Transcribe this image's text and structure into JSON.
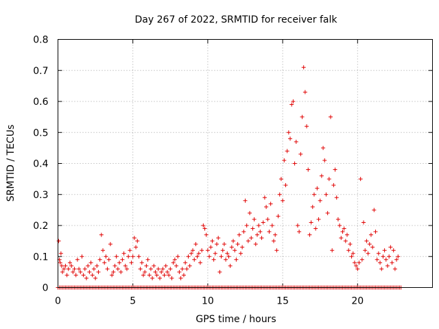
{
  "chart_data": {
    "type": "scatter",
    "title": "Day 267 of 2022, SRMTID for receiver falk",
    "xlabel": "GPS time / hours",
    "ylabel": "SRMTID / TECUs",
    "xlim": [
      0,
      25
    ],
    "ylim": [
      0,
      0.8
    ],
    "xticks": [
      0,
      5,
      10,
      15,
      20
    ],
    "xtick_labels": [
      "0",
      "5",
      "10",
      "15",
      "20"
    ],
    "yticks": [
      0,
      0.1,
      0.2,
      0.3,
      0.4,
      0.5,
      0.6,
      0.7,
      0.8
    ],
    "ytick_labels": [
      "0",
      "0.1",
      "0.2",
      "0.3",
      "0.4",
      "0.5",
      "0.6",
      "0.7",
      "0.8"
    ],
    "grid": true,
    "marker": "plus",
    "color": "#e00000",
    "series": [
      {
        "name": "SRMTID",
        "points": [
          [
            0.05,
            0.15
          ],
          [
            0.1,
            0.09
          ],
          [
            0.15,
            0.08
          ],
          [
            0.2,
            0.11
          ],
          [
            0.25,
            0.07
          ],
          [
            0.3,
            0.05
          ],
          [
            0.4,
            0.06
          ],
          [
            0.5,
            0.07
          ],
          [
            0.6,
            0.04
          ],
          [
            0.7,
            0.06
          ],
          [
            0.8,
            0.08
          ],
          [
            0.9,
            0.07
          ],
          [
            1.0,
            0.05
          ],
          [
            1.1,
            0.06
          ],
          [
            1.2,
            0.04
          ],
          [
            1.3,
            0.09
          ],
          [
            1.4,
            0.06
          ],
          [
            1.5,
            0.05
          ],
          [
            1.6,
            0.1
          ],
          [
            1.7,
            0.04
          ],
          [
            1.8,
            0.06
          ],
          [
            1.9,
            0.03
          ],
          [
            2.0,
            0.07
          ],
          [
            2.1,
            0.05
          ],
          [
            2.2,
            0.08
          ],
          [
            2.3,
            0.04
          ],
          [
            2.4,
            0.06
          ],
          [
            2.5,
            0.03
          ],
          [
            2.6,
            0.07
          ],
          [
            2.7,
            0.05
          ],
          [
            2.8,
            0.09
          ],
          [
            2.9,
            0.17
          ],
          [
            3.0,
            0.12
          ],
          [
            3.1,
            0.08
          ],
          [
            3.2,
            0.1
          ],
          [
            3.3,
            0.06
          ],
          [
            3.4,
            0.09
          ],
          [
            3.5,
            0.14
          ],
          [
            3.6,
            0.04
          ],
          [
            3.7,
            0.05
          ],
          [
            3.8,
            0.07
          ],
          [
            3.9,
            0.1
          ],
          [
            4.0,
            0.06
          ],
          [
            4.1,
            0.08
          ],
          [
            4.2,
            0.05
          ],
          [
            4.3,
            0.09
          ],
          [
            4.4,
            0.11
          ],
          [
            4.5,
            0.07
          ],
          [
            4.6,
            0.06
          ],
          [
            4.7,
            0.1
          ],
          [
            4.8,
            0.12
          ],
          [
            4.9,
            0.08
          ],
          [
            5.0,
            0.1
          ],
          [
            5.1,
            0.16
          ],
          [
            5.2,
            0.13
          ],
          [
            5.3,
            0.15
          ],
          [
            5.4,
            0.1
          ],
          [
            5.5,
            0.06
          ],
          [
            5.6,
            0.08
          ],
          [
            5.7,
            0.04
          ],
          [
            5.8,
            0.05
          ],
          [
            5.9,
            0.07
          ],
          [
            6.0,
            0.09
          ],
          [
            6.1,
            0.04
          ],
          [
            6.2,
            0.06
          ],
          [
            6.3,
            0.03
          ],
          [
            6.4,
            0.07
          ],
          [
            6.5,
            0.05
          ],
          [
            6.6,
            0.04
          ],
          [
            6.7,
            0.06
          ],
          [
            6.8,
            0.03
          ],
          [
            6.9,
            0.05
          ],
          [
            7.0,
            0.06
          ],
          [
            7.1,
            0.04
          ],
          [
            7.2,
            0.07
          ],
          [
            7.3,
            0.05
          ],
          [
            7.4,
            0.04
          ],
          [
            7.5,
            0.06
          ],
          [
            7.6,
            0.03
          ],
          [
            7.7,
            0.08
          ],
          [
            7.8,
            0.09
          ],
          [
            7.9,
            0.07
          ],
          [
            8.0,
            0.1
          ],
          [
            8.1,
            0.05
          ],
          [
            8.2,
            0.03
          ],
          [
            8.3,
            0.06
          ],
          [
            8.4,
            0.04
          ],
          [
            8.5,
            0.08
          ],
          [
            8.6,
            0.06
          ],
          [
            8.7,
            0.1
          ],
          [
            8.8,
            0.07
          ],
          [
            8.9,
            0.11
          ],
          [
            9.0,
            0.12
          ],
          [
            9.1,
            0.09
          ],
          [
            9.2,
            0.14
          ],
          [
            9.3,
            0.1
          ],
          [
            9.4,
            0.11
          ],
          [
            9.5,
            0.08
          ],
          [
            9.6,
            0.12
          ],
          [
            9.7,
            0.2
          ],
          [
            9.8,
            0.19
          ],
          [
            9.9,
            0.17
          ],
          [
            10.0,
            0.12
          ],
          [
            10.1,
            0.1
          ],
          [
            10.2,
            0.13
          ],
          [
            10.3,
            0.15
          ],
          [
            10.4,
            0.09
          ],
          [
            10.5,
            0.11
          ],
          [
            10.6,
            0.14
          ],
          [
            10.7,
            0.16
          ],
          [
            10.8,
            0.05
          ],
          [
            10.9,
            0.1
          ],
          [
            11.0,
            0.12
          ],
          [
            11.1,
            0.14
          ],
          [
            11.2,
            0.09
          ],
          [
            11.3,
            0.11
          ],
          [
            11.4,
            0.1
          ],
          [
            11.5,
            0.07
          ],
          [
            11.6,
            0.13
          ],
          [
            11.7,
            0.15
          ],
          [
            11.8,
            0.12
          ],
          [
            11.9,
            0.09
          ],
          [
            12.0,
            0.14
          ],
          [
            12.1,
            0.17
          ],
          [
            12.2,
            0.11
          ],
          [
            12.3,
            0.13
          ],
          [
            12.4,
            0.18
          ],
          [
            12.5,
            0.28
          ],
          [
            12.6,
            0.2
          ],
          [
            12.7,
            0.15
          ],
          [
            12.8,
            0.24
          ],
          [
            12.9,
            0.16
          ],
          [
            13.0,
            0.19
          ],
          [
            13.1,
            0.22
          ],
          [
            13.2,
            0.14
          ],
          [
            13.3,
            0.17
          ],
          [
            13.4,
            0.2
          ],
          [
            13.5,
            0.18
          ],
          [
            13.6,
            0.16
          ],
          [
            13.7,
            0.21
          ],
          [
            13.8,
            0.29
          ],
          [
            13.9,
            0.26
          ],
          [
            14.0,
            0.22
          ],
          [
            14.1,
            0.18
          ],
          [
            14.2,
            0.27
          ],
          [
            14.3,
            0.2
          ],
          [
            14.4,
            0.15
          ],
          [
            14.5,
            0.17
          ],
          [
            14.6,
            0.12
          ],
          [
            14.7,
            0.23
          ],
          [
            14.8,
            0.3
          ],
          [
            14.9,
            0.35
          ],
          [
            15.0,
            0.28
          ],
          [
            15.1,
            0.41
          ],
          [
            15.2,
            0.33
          ],
          [
            15.3,
            0.44
          ],
          [
            15.4,
            0.5
          ],
          [
            15.5,
            0.48
          ],
          [
            15.6,
            0.59
          ],
          [
            15.7,
            0.6
          ],
          [
            15.8,
            0.4
          ],
          [
            15.9,
            0.47
          ],
          [
            16.0,
            0.2
          ],
          [
            16.1,
            0.18
          ],
          [
            16.2,
            0.43
          ],
          [
            16.3,
            0.55
          ],
          [
            16.4,
            0.71
          ],
          [
            16.5,
            0.63
          ],
          [
            16.6,
            0.52
          ],
          [
            16.7,
            0.38
          ],
          [
            16.8,
            0.17
          ],
          [
            16.9,
            0.21
          ],
          [
            17.0,
            0.26
          ],
          [
            17.1,
            0.3
          ],
          [
            17.2,
            0.19
          ],
          [
            17.3,
            0.32
          ],
          [
            17.4,
            0.22
          ],
          [
            17.5,
            0.28
          ],
          [
            17.6,
            0.36
          ],
          [
            17.7,
            0.45
          ],
          [
            17.8,
            0.41
          ],
          [
            17.9,
            0.3
          ],
          [
            18.0,
            0.24
          ],
          [
            18.1,
            0.35
          ],
          [
            18.2,
            0.55
          ],
          [
            18.3,
            0.12
          ],
          [
            18.4,
            0.33
          ],
          [
            18.5,
            0.38
          ],
          [
            18.6,
            0.29
          ],
          [
            18.7,
            0.22
          ],
          [
            18.8,
            0.2
          ],
          [
            18.9,
            0.16
          ],
          [
            19.0,
            0.18
          ],
          [
            19.1,
            0.19
          ],
          [
            19.2,
            0.15
          ],
          [
            19.3,
            0.17
          ],
          [
            19.4,
            0.12
          ],
          [
            19.5,
            0.14
          ],
          [
            19.6,
            0.1
          ],
          [
            19.7,
            0.11
          ],
          [
            19.8,
            0.08
          ],
          [
            19.9,
            0.07
          ],
          [
            20.0,
            0.06
          ],
          [
            20.1,
            0.08
          ],
          [
            20.2,
            0.35
          ],
          [
            20.3,
            0.09
          ],
          [
            20.4,
            0.21
          ],
          [
            20.5,
            0.12
          ],
          [
            20.6,
            0.15
          ],
          [
            20.7,
            0.11
          ],
          [
            20.8,
            0.14
          ],
          [
            20.9,
            0.17
          ],
          [
            21.0,
            0.13
          ],
          [
            21.1,
            0.25
          ],
          [
            21.2,
            0.18
          ],
          [
            21.3,
            0.09
          ],
          [
            21.4,
            0.11
          ],
          [
            21.5,
            0.08
          ],
          [
            21.6,
            0.06
          ],
          [
            21.7,
            0.1
          ],
          [
            21.8,
            0.12
          ],
          [
            21.9,
            0.09
          ],
          [
            22.0,
            0.07
          ],
          [
            22.1,
            0.1
          ],
          [
            22.2,
            0.13
          ],
          [
            22.3,
            0.08
          ],
          [
            22.4,
            0.12
          ],
          [
            22.5,
            0.06
          ],
          [
            22.6,
            0.09
          ],
          [
            22.7,
            0.1
          ]
        ]
      },
      {
        "name": "SRMTID zero samples",
        "x_start": 0.0,
        "x_end": 22.9,
        "x_step": 0.1,
        "y": 0
      }
    ]
  }
}
